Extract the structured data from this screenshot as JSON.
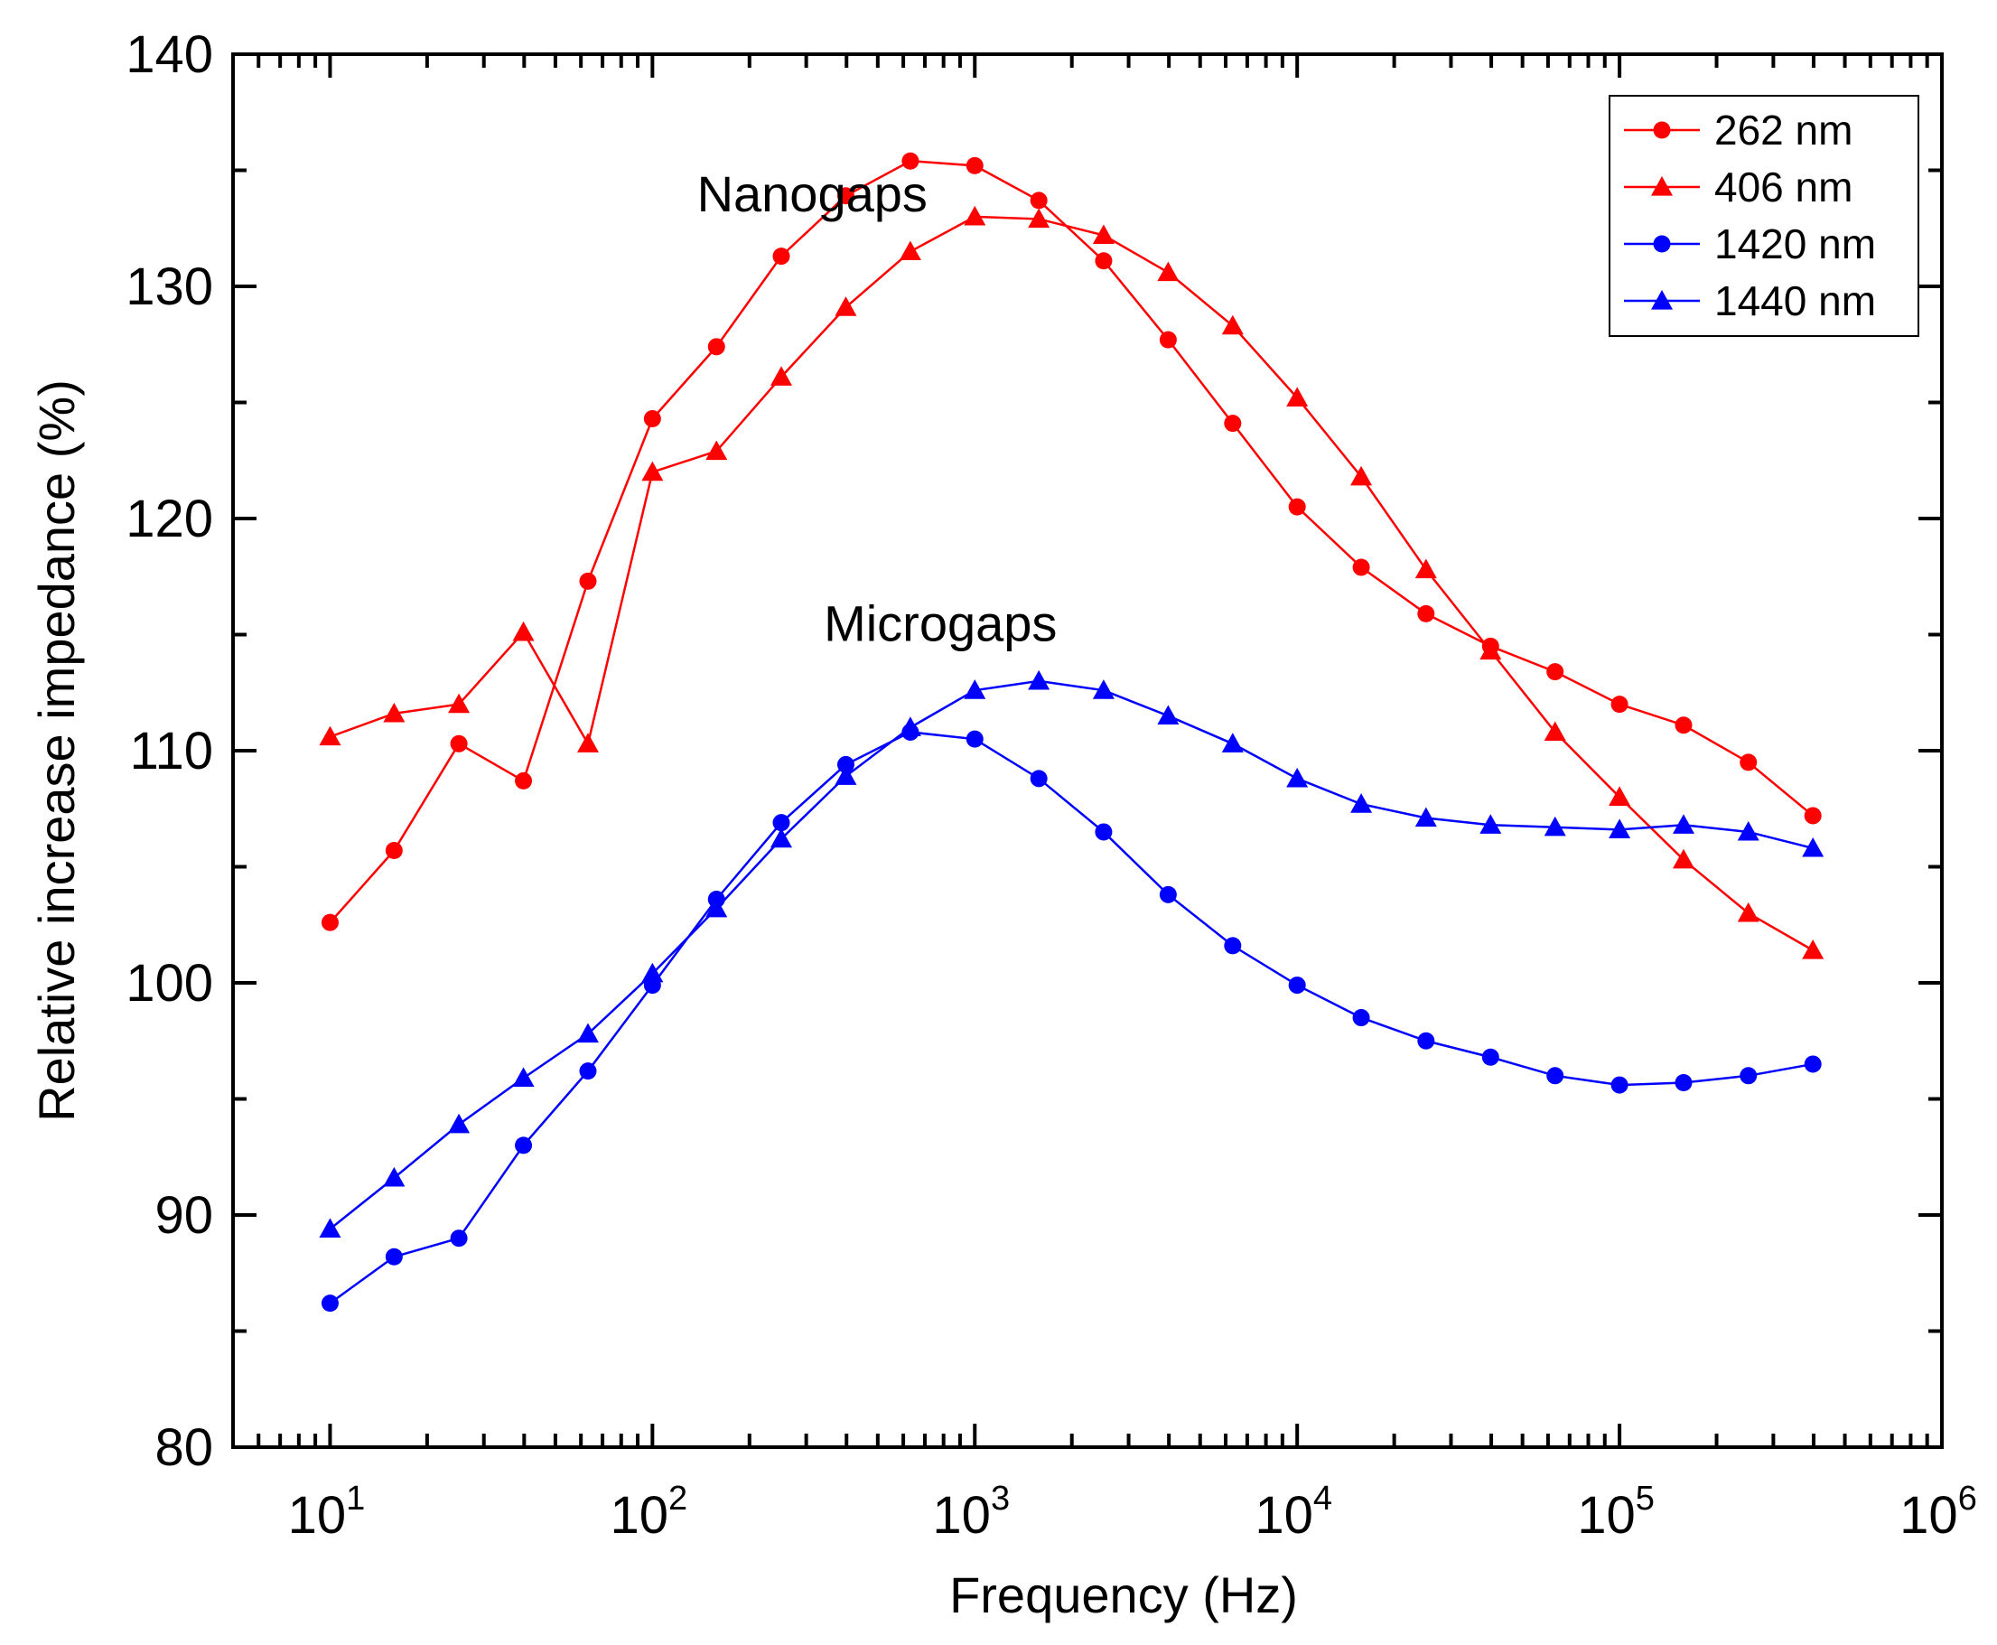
{
  "chart_data": {
    "type": "line",
    "xscale": "log",
    "xlabel": "Frequency (Hz)",
    "ylabel": "Relative increase impedance (%)",
    "xlim": [
      5,
      1000000
    ],
    "ylim": [
      80,
      140
    ],
    "yticks": [
      80,
      90,
      100,
      110,
      120,
      130,
      140
    ],
    "xticks": [
      {
        "value": 10,
        "base": "10",
        "exp": "1"
      },
      {
        "value": 100,
        "base": "10",
        "exp": "2"
      },
      {
        "value": 1000,
        "base": "10",
        "exp": "3"
      },
      {
        "value": 10000,
        "base": "10",
        "exp": "4"
      },
      {
        "value": 100000,
        "base": "10",
        "exp": "5"
      },
      {
        "value": 1000000,
        "base": "10",
        "exp": "6"
      }
    ],
    "x": [
      10,
      15.8,
      25.1,
      39.8,
      63.1,
      100,
      158,
      251,
      398,
      631,
      1000,
      1580,
      2510,
      3980,
      6310,
      10000,
      15800,
      25100,
      39800,
      63100,
      100000,
      158000,
      251000,
      398000
    ],
    "series": [
      {
        "name": "262 nm",
        "color": "#ff0000",
        "marker": "circle",
        "values": [
          102.6,
          105.7,
          110.3,
          108.7,
          117.3,
          124.3,
          127.4,
          131.3,
          133.9,
          135.4,
          135.2,
          133.7,
          131.1,
          127.7,
          124.1,
          120.5,
          117.9,
          115.9,
          114.5,
          113.4,
          112.0,
          111.1,
          109.5,
          107.2
        ]
      },
      {
        "name": "406 nm",
        "color": "#ff0000",
        "marker": "triangle",
        "values": [
          110.6,
          111.6,
          112.0,
          115.1,
          110.3,
          122.0,
          122.9,
          126.1,
          129.1,
          131.5,
          133.0,
          132.9,
          132.2,
          130.6,
          128.3,
          125.2,
          121.8,
          117.8,
          114.3,
          110.8,
          108.0,
          105.3,
          103.0,
          101.4
        ]
      },
      {
        "name": "1420 nm",
        "color": "#0000ff",
        "marker": "circle",
        "values": [
          86.2,
          88.2,
          89.0,
          93.0,
          96.2,
          99.9,
          103.6,
          106.9,
          109.4,
          110.8,
          110.5,
          108.8,
          106.5,
          103.8,
          101.6,
          99.9,
          98.5,
          97.5,
          96.8,
          96.0,
          95.6,
          95.7,
          96.0,
          96.5
        ]
      },
      {
        "name": "1440 nm",
        "color": "#0000ff",
        "marker": "triangle",
        "values": [
          89.4,
          91.6,
          93.9,
          95.9,
          97.8,
          100.4,
          103.2,
          106.2,
          108.9,
          111.0,
          112.6,
          113.0,
          112.6,
          111.5,
          110.3,
          108.8,
          107.7,
          107.1,
          106.8,
          106.7,
          106.6,
          106.8,
          106.5,
          105.8
        ]
      }
    ],
    "annotations": [
      {
        "text": "Nanogaps",
        "x": 400,
        "y": 134
      },
      {
        "text": "Microgaps",
        "x": 1000,
        "y": 115.5
      }
    ],
    "legend_position": "top-right"
  }
}
